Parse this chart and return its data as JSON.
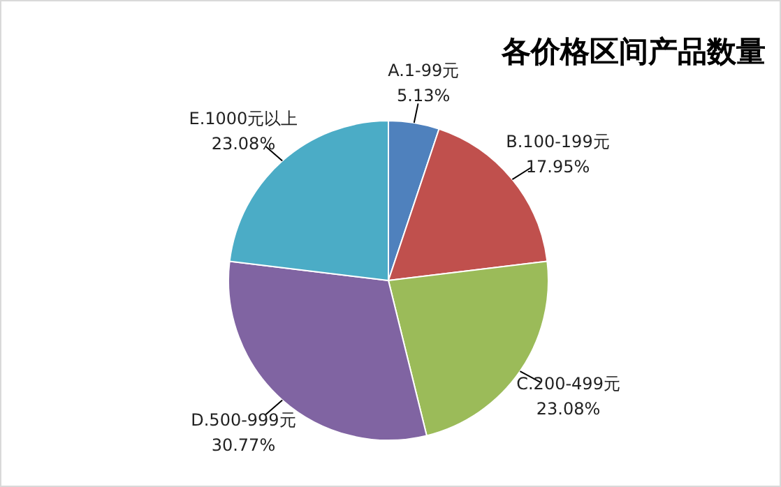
{
  "chart_data": {
    "type": "pie",
    "title": "各价格区间产品数量",
    "categories": [
      "A.1-99元",
      "B.100-199元",
      "C.200-499元",
      "D.500-999元",
      "E.1000元以上"
    ],
    "values": [
      5.13,
      17.95,
      23.08,
      30.77,
      23.08
    ],
    "colors": [
      "#4f81bd",
      "#c0504d",
      "#9bbb59",
      "#8064a2",
      "#4bacc6"
    ],
    "value_labels": [
      "5.13%",
      "17.95%",
      "23.08%",
      "30.77%",
      "23.08%"
    ],
    "legend": false
  }
}
